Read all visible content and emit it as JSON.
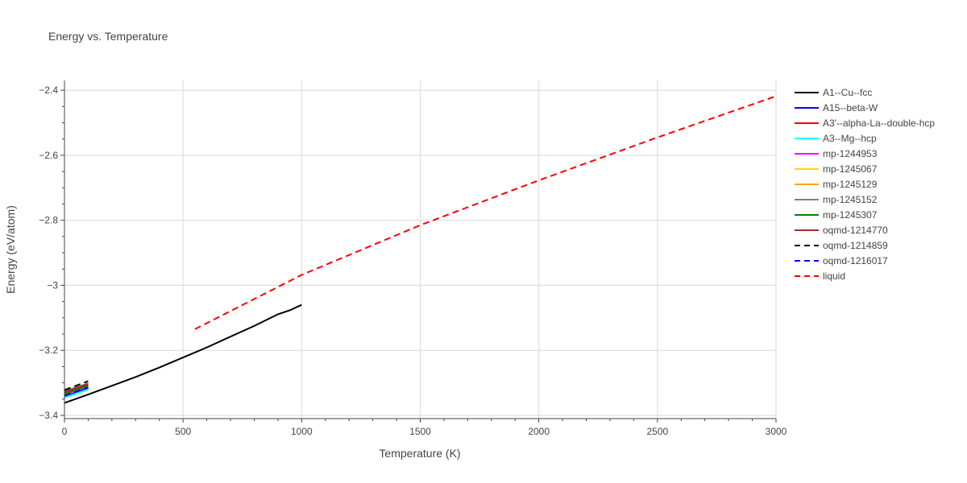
{
  "chart_data": {
    "type": "line",
    "title": "Energy vs. Temperature",
    "xlabel": "Temperature (K)",
    "ylabel": "Energy (eV/atom)",
    "xlim": [
      0,
      3000
    ],
    "ylim": [
      -3.41,
      -2.37
    ],
    "xticks": [
      0,
      500,
      1000,
      1500,
      2000,
      2500,
      3000
    ],
    "xtick_labels": [
      "0",
      "500",
      "1000",
      "1500",
      "2000",
      "2500",
      "3000"
    ],
    "yticks": [
      -3.4,
      -3.2,
      -3.0,
      -2.8,
      -2.6,
      -2.4
    ],
    "ytick_labels": [
      "−3.4",
      "−3.2",
      "−3",
      "−2.8",
      "−2.6",
      "−2.4"
    ],
    "grid": true,
    "legend_position": "right",
    "series": [
      {
        "name": "A1--Cu--fcc",
        "color": "#000000",
        "dash": "solid",
        "x": [
          0,
          100,
          200,
          300,
          400,
          500,
          600,
          700,
          800,
          900,
          950,
          1000
        ],
        "y": [
          -3.362,
          -3.336,
          -3.309,
          -3.282,
          -3.253,
          -3.222,
          -3.191,
          -3.158,
          -3.125,
          -3.089,
          -3.077,
          -3.06
        ]
      },
      {
        "name": "A15--beta-W",
        "color": "#0000ff",
        "dash": "solid",
        "x": [
          0,
          100
        ],
        "y": [
          -3.342,
          -3.316
        ]
      },
      {
        "name": "A3'--alpha-La--double-hcp",
        "color": "#ff0000",
        "dash": "solid",
        "x": [
          0,
          100
        ],
        "y": [
          -3.335,
          -3.31
        ]
      },
      {
        "name": "A3--Mg--hcp",
        "color": "#00ffff",
        "dash": "solid",
        "x": [
          0,
          100
        ],
        "y": [
          -3.345,
          -3.32
        ]
      },
      {
        "name": "mp-1244953",
        "color": "#ff00ff",
        "dash": "solid",
        "x": [
          0,
          100
        ],
        "y": [
          -3.333,
          -3.308
        ]
      },
      {
        "name": "mp-1245067",
        "color": "#ffd700",
        "dash": "solid",
        "x": [
          0,
          100
        ],
        "y": [
          -3.331,
          -3.306
        ]
      },
      {
        "name": "mp-1245129",
        "color": "#ffa500",
        "dash": "solid",
        "x": [
          0,
          100
        ],
        "y": [
          -3.33,
          -3.305
        ]
      },
      {
        "name": "mp-1245152",
        "color": "#808080",
        "dash": "solid",
        "x": [
          0,
          100
        ],
        "y": [
          -3.328,
          -3.303
        ]
      },
      {
        "name": "mp-1245307",
        "color": "#008000",
        "dash": "solid",
        "x": [
          0,
          100
        ],
        "y": [
          -3.333,
          -3.307
        ]
      },
      {
        "name": "oqmd-1214770",
        "color": "#a52a2a",
        "dash": "solid",
        "x": [
          0,
          100
        ],
        "y": [
          -3.327,
          -3.302
        ]
      },
      {
        "name": "oqmd-1214859",
        "color": "#000000",
        "dash": "dash",
        "x": [
          0,
          100
        ],
        "y": [
          -3.322,
          -3.295
        ]
      },
      {
        "name": "oqmd-1216017",
        "color": "#0000ff",
        "dash": "dash",
        "x": [
          0,
          100
        ],
        "y": [
          -3.34,
          -3.314
        ]
      },
      {
        "name": "liquid",
        "color": "#ff0000",
        "dash": "dash",
        "x": [
          550,
          1000,
          1500,
          2000,
          2500,
          3000
        ],
        "y": [
          -3.135,
          -2.968,
          -2.815,
          -2.677,
          -2.545,
          -2.418
        ]
      }
    ]
  }
}
